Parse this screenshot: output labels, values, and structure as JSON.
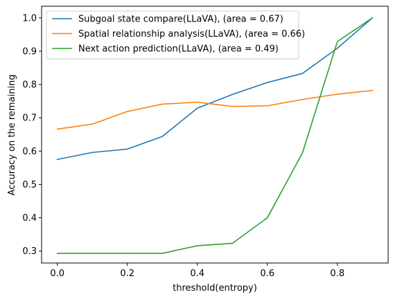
{
  "chart_data": {
    "type": "line",
    "xlabel": "threshold(entropy)",
    "ylabel": "Accuracy on the remaining",
    "x": [
      0.0,
      0.1,
      0.2,
      0.3,
      0.4,
      0.5,
      0.6,
      0.7,
      0.8,
      0.9
    ],
    "xlim": [
      -0.045,
      0.945
    ],
    "ylim": [
      0.264,
      1.035
    ],
    "xticks": [
      0.0,
      0.2,
      0.4,
      0.6,
      0.8
    ],
    "xtick_labels": [
      "0.0",
      "0.2",
      "0.4",
      "0.6",
      "0.8"
    ],
    "yticks": [
      0.3,
      0.4,
      0.5,
      0.6,
      0.7,
      0.8,
      0.9,
      1.0
    ],
    "ytick_labels": [
      "0.3",
      "0.4",
      "0.5",
      "0.6",
      "0.7",
      "0.8",
      "0.9",
      "1.0"
    ],
    "grid": false,
    "legend_position": "top-left",
    "series": [
      {
        "name": "Subgoal state compare(LLaVA), (area = 0.67)",
        "color": "#1f77b4",
        "values": [
          0.575,
          0.596,
          0.606,
          0.644,
          0.729,
          0.77,
          0.806,
          0.833,
          0.909,
          1.0
        ]
      },
      {
        "name": "Spatial relationship analysis(LLaVA), (area = 0.66)",
        "color": "#ff7f0e",
        "values": [
          0.666,
          0.681,
          0.719,
          0.741,
          0.747,
          0.734,
          0.736,
          0.755,
          0.771,
          0.782
        ]
      },
      {
        "name": "Next action prediction(LLaVA), (area = 0.49)",
        "color": "#2ca02c",
        "values": [
          0.293,
          0.293,
          0.293,
          0.293,
          0.316,
          0.323,
          0.4,
          0.594,
          0.929,
          1.0
        ]
      }
    ]
  }
}
